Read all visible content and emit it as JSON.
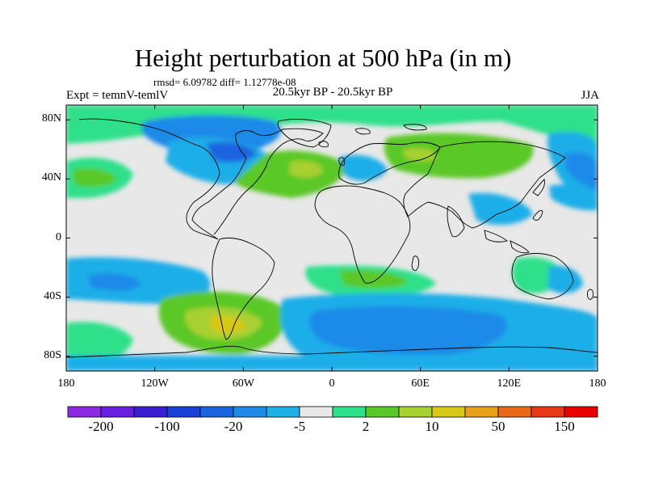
{
  "title": "Height perturbation at 500 hPa (in m)",
  "stats": "rmsd= 6.09782  diff= 1.12778e-08",
  "left_label": "Expt = temnV-temlV",
  "center_label": "20.5kyr BP - 20.5kyr BP",
  "right_label": "JJA",
  "map": {
    "projection": "cylindrical-equidistant",
    "lon_range": [
      -180,
      180
    ],
    "lat_range": [
      -90,
      90
    ],
    "ocean_fill": "#e6e6e6",
    "coastline_color": "#000000"
  },
  "axes": {
    "y_ticks": [
      {
        "lat": 80,
        "label": "80N"
      },
      {
        "lat": 40,
        "label": "40N"
      },
      {
        "lat": 0,
        "label": "0"
      },
      {
        "lat": -40,
        "label": "40S"
      },
      {
        "lat": -80,
        "label": "80S"
      }
    ],
    "x_ticks": [
      {
        "lon": -180,
        "label": "180"
      },
      {
        "lon": -120,
        "label": "120W"
      },
      {
        "lon": -60,
        "label": "60W"
      },
      {
        "lon": 0,
        "label": "0"
      },
      {
        "lon": 60,
        "label": "60E"
      },
      {
        "lon": 120,
        "label": "120E"
      },
      {
        "lon": 180,
        "label": "180"
      }
    ]
  },
  "colorbar": {
    "colors": [
      "#8a2be2",
      "#6a1fe0",
      "#3a1fd0",
      "#1a40d8",
      "#1a64e0",
      "#1e8ae8",
      "#1eaee8",
      "#e8e8e8",
      "#2ee08a",
      "#5ac828",
      "#a8d030",
      "#d8c818",
      "#e8a018",
      "#e86818",
      "#e83818",
      "#e80000"
    ],
    "labels": [
      {
        "after_index": 0,
        "text": "-200"
      },
      {
        "after_index": 2,
        "text": "-100"
      },
      {
        "after_index": 4,
        "text": "-20"
      },
      {
        "after_index": 6,
        "text": "-5"
      },
      {
        "after_index": 8,
        "text": "2"
      },
      {
        "after_index": 10,
        "text": "10"
      },
      {
        "after_index": 12,
        "text": "50"
      },
      {
        "after_index": 14,
        "text": "150"
      }
    ]
  }
}
